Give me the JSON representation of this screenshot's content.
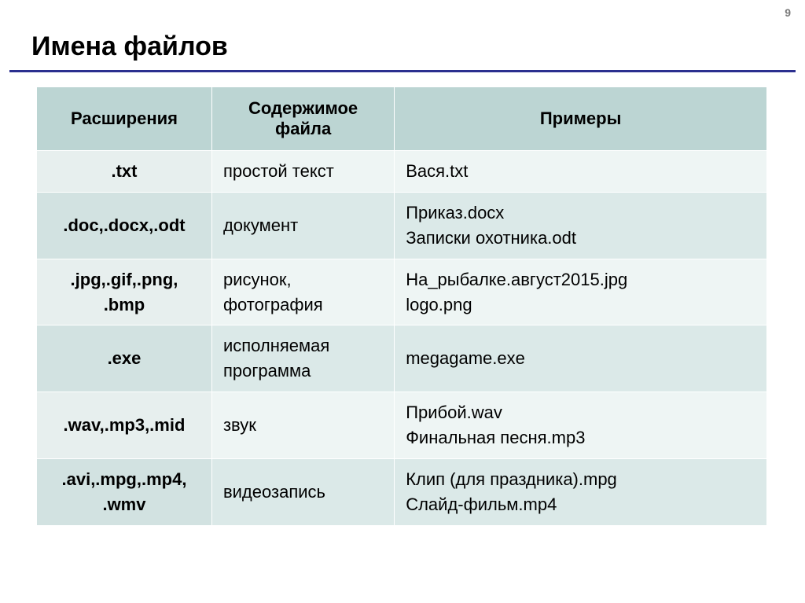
{
  "page_number": "9",
  "title": "Имена файлов",
  "colors": {
    "underline": "#2b2f8f",
    "header_bg": "#bcd5d3",
    "row_light": "#eef5f4",
    "row_dark": "#dbe9e8",
    "text": "#000000",
    "page_num": "#7a7a7a"
  },
  "table": {
    "headers": {
      "ext": "Расширения",
      "desc": "Содержимое файла",
      "ex": "Примеры"
    },
    "rows": [
      {
        "ext": ".txt",
        "desc": "простой текст",
        "ex": "Вася.txt"
      },
      {
        "ext": ".doc,.docx,.odt",
        "desc": "документ",
        "ex": "Приказ.docx\nЗаписки охотника.odt"
      },
      {
        "ext": ".jpg,.gif,.png, .bmp",
        "desc": "рисунок, фотография",
        "ex": "На_рыбалке.август2015.jpg\nlogo.png"
      },
      {
        "ext": ".exe",
        "desc": "исполняемая программа",
        "ex": "megagame.exe"
      },
      {
        "ext": ".wav,.mp3,.mid",
        "desc": "звук",
        "ex": "Прибой.wav\nФинальная песня.mp3"
      },
      {
        "ext": ".avi,.mpg,.mp4, .wmv",
        "desc": "видеозапись",
        "ex": "Клип (для праздника).mpg\nСлайд-фильм.mp4"
      }
    ]
  },
  "fonts": {
    "title_size_pt": 26,
    "body_size_pt": 17,
    "header_weight": "bold"
  }
}
